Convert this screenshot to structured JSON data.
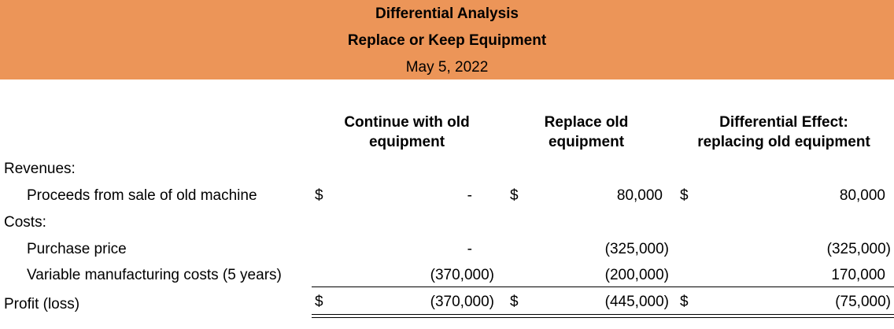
{
  "title": "Differential Analysis",
  "subtitle": "Replace or Keep Equipment",
  "date": "May 5, 2022",
  "columns": [
    "Continue with old equipment",
    "Replace old equipment",
    "Differential Effect: replacing old equipment"
  ],
  "columns_lines": [
    [
      "Continue with old",
      "equipment"
    ],
    [
      "Replace old",
      "equipment"
    ],
    [
      "Differential Effect:",
      "replacing old equipment"
    ]
  ],
  "currency_symbol": "$",
  "sections": {
    "revenues_label": "Revenues:",
    "costs_label": "Costs:"
  },
  "rows": {
    "proceeds": {
      "label": "Proceeds from sale of old machine",
      "values": [
        "-",
        "80,000",
        "80,000"
      ]
    },
    "purchase": {
      "label": "Purchase price",
      "values": [
        "-",
        "(325,000)",
        "(325,000)"
      ]
    },
    "variable": {
      "label": "Variable manufacturing costs (5 years)",
      "values": [
        "(370,000)",
        "(200,000)",
        "170,000"
      ]
    },
    "profit": {
      "label": "Profit (loss)",
      "values": [
        "(370,000)",
        "(445,000)",
        "(75,000)"
      ]
    }
  }
}
